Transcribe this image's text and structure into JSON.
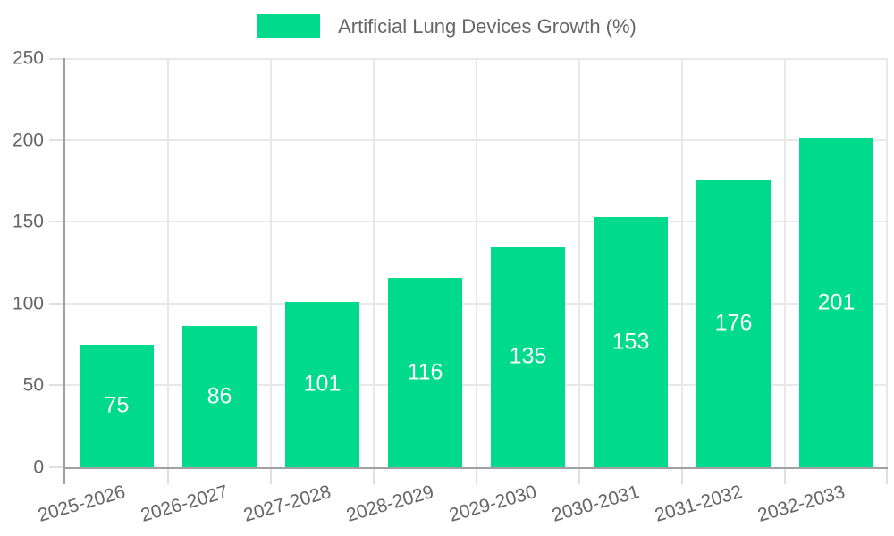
{
  "chart_data": {
    "type": "bar",
    "title": "",
    "legend_label": "Artificial Lung Devices Growth (%)",
    "legend_position": "top",
    "categories": [
      "2025-2026",
      "2026-2027",
      "2027-2028",
      "2028-2029",
      "2029-2030",
      "2030-2031",
      "2031-2032",
      "2032-2033"
    ],
    "values": [
      75,
      86,
      101,
      116,
      135,
      153,
      176,
      201
    ],
    "xlabel": "",
    "ylabel": "",
    "ylim": [
      0,
      250
    ],
    "yticks": [
      0,
      50,
      100,
      150,
      200,
      250
    ],
    "grid": true,
    "bar_value_labels_inside": true,
    "x_tick_rotation_deg": -16
  },
  "colors": {
    "bar": "#00DA8C",
    "bar_label": "#FFFFFF",
    "axis_text": "#666666",
    "axis_line": "#A0A0A0",
    "gridline": "#E8E8E8",
    "tick": "#E0E0E0",
    "background": "#FFFFFF"
  }
}
